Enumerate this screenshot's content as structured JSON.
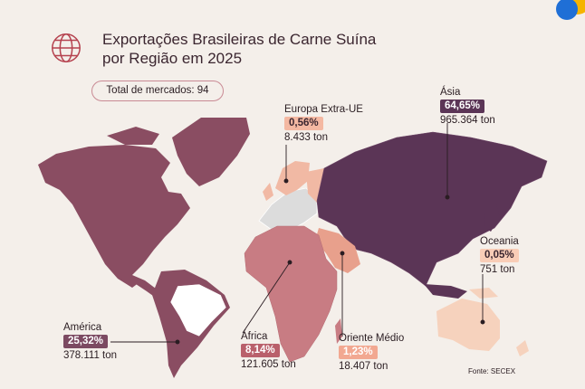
{
  "title_line1": "Exportações Brasileiras de Carne Suína",
  "title_line2": "por Região em 2025",
  "total_markets": "Total de mercados: 94",
  "source": "Fonte: SECEX",
  "colors": {
    "asia": "#5b3556",
    "america": "#8a4d62",
    "africa": "#c87c83",
    "europa": "#f1b9a4",
    "oriente_medio": "#e8a08c",
    "oceania": "#f6d2bd",
    "brazil": "#ffffff",
    "other": "#dcdcdc",
    "asia_badge": "#5b3556",
    "america_badge": "#7c4a62",
    "africa_badge": "#b9606b",
    "europa_badge": "#f4b8a2",
    "oriente_badge": "#f2a891",
    "oceania_badge": "#f9cdb7"
  },
  "regions": {
    "asia": {
      "name": "Ásia",
      "pct": "64,65%",
      "ton": "965.364 ton"
    },
    "europa": {
      "name": "Europa Extra-UE",
      "pct": "0,56%",
      "ton": "8.433 ton"
    },
    "oceania": {
      "name": "Oceania",
      "pct": "0,05%",
      "ton": "751 ton"
    },
    "america": {
      "name": "América",
      "pct": "25,32%",
      "ton": "378.111 ton"
    },
    "africa": {
      "name": "África",
      "pct": "8,14%",
      "ton": "121.605 ton"
    },
    "oriente": {
      "name": "Oriente Médio",
      "pct": "1,23%",
      "ton": "18.407 ton"
    }
  }
}
